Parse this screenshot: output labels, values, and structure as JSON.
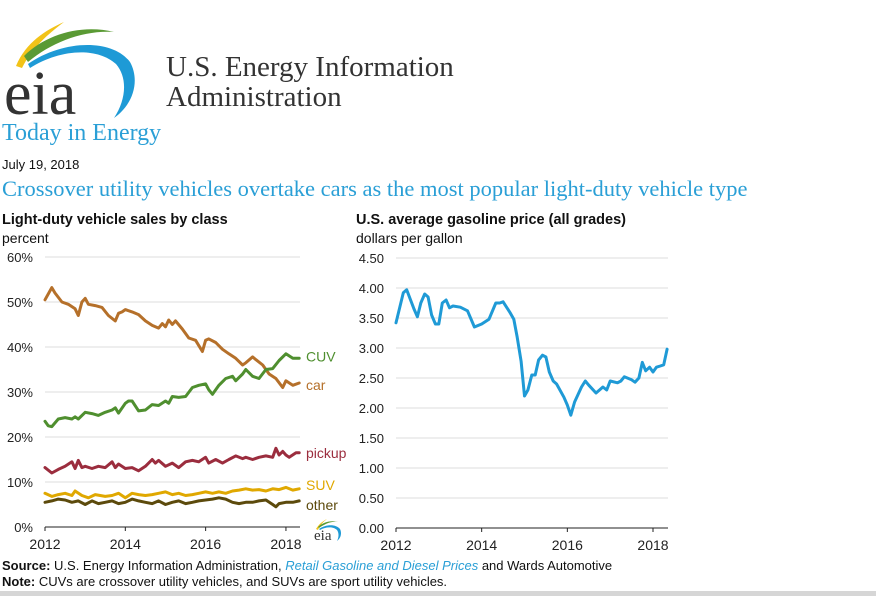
{
  "header": {
    "org_line1": "U.S. Energy Information",
    "org_line2": "Administration",
    "logo_text": "eia",
    "section": "Today in Energy",
    "date": "July 19, 2018",
    "headline": "Crossover utility vehicles overtake cars as the most popular light-duty vehicle type"
  },
  "footer": {
    "source_label": "Source:",
    "source_text": "U.S. Energy Information Administration,",
    "source_link": "Retail Gasoline and Diesel Prices",
    "source_tail": "and Wards Automotive",
    "note_label": "Note:",
    "note_text": "CUVs are crossover utility vehicles, and SUVs are sport utility vehicles."
  },
  "colors": {
    "car": "#b5702a",
    "CUV": "#4f8f2f",
    "pickup": "#9b2d3e",
    "SUV": "#e0a800",
    "other": "#5c4a0c",
    "gasoline": "#1f9ad6",
    "accent": "#2a9fd6"
  },
  "chart_data": [
    {
      "type": "line",
      "title": "Light-duty vehicle sales by class",
      "ylabel": "percent",
      "xlabel": "",
      "ylim": [
        0,
        60
      ],
      "xlim": [
        2012,
        2018.35
      ],
      "yticks": [
        "0%",
        "10%",
        "20%",
        "30%",
        "40%",
        "50%",
        "60%"
      ],
      "ytick_values": [
        0,
        10,
        20,
        30,
        40,
        50,
        60
      ],
      "xticks": [
        "2012",
        "2014",
        "2016",
        "2018"
      ],
      "xtick_values": [
        2012,
        2014,
        2016,
        2018
      ],
      "grid": true,
      "legend": "inline-right",
      "series": [
        {
          "name": "car",
          "label": "car",
          "x": [
            2012.0,
            2012.17,
            2012.25,
            2012.42,
            2012.58,
            2012.75,
            2012.83,
            2012.92,
            2013.0,
            2013.08,
            2013.25,
            2013.42,
            2013.58,
            2013.75,
            2013.83,
            2013.92,
            2014.0,
            2014.17,
            2014.33,
            2014.5,
            2014.67,
            2014.83,
            2014.92,
            2015.0,
            2015.08,
            2015.17,
            2015.25,
            2015.42,
            2015.58,
            2015.75,
            2015.92,
            2016.0,
            2016.08,
            2016.25,
            2016.42,
            2016.58,
            2016.75,
            2016.92,
            2017.0,
            2017.17,
            2017.25,
            2017.42,
            2017.58,
            2017.75,
            2017.92,
            2018.0,
            2018.17,
            2018.33
          ],
          "values": [
            50.5,
            53.2,
            52.0,
            50.0,
            49.5,
            48.5,
            47.0,
            50.0,
            50.8,
            49.5,
            49.2,
            48.8,
            47.0,
            45.8,
            47.5,
            47.8,
            48.3,
            47.8,
            47.2,
            45.8,
            44.8,
            44.2,
            45.2,
            44.5,
            46.0,
            45.0,
            45.8,
            44.0,
            42.0,
            41.5,
            39.0,
            41.5,
            41.8,
            41.0,
            39.5,
            38.5,
            37.5,
            36.0,
            36.5,
            37.8,
            37.2,
            36.0,
            34.0,
            33.0,
            31.0,
            32.5,
            31.5,
            32.0
          ]
        },
        {
          "name": "CUV",
          "label": "CUV",
          "x": [
            2012.0,
            2012.08,
            2012.17,
            2012.33,
            2012.5,
            2012.67,
            2012.75,
            2012.83,
            2013.0,
            2013.17,
            2013.33,
            2013.5,
            2013.67,
            2013.75,
            2013.83,
            2014.0,
            2014.08,
            2014.17,
            2014.33,
            2014.5,
            2014.67,
            2014.83,
            2015.0,
            2015.08,
            2015.17,
            2015.33,
            2015.5,
            2015.67,
            2015.83,
            2016.0,
            2016.08,
            2016.17,
            2016.33,
            2016.5,
            2016.67,
            2016.75,
            2016.92,
            2017.0,
            2017.17,
            2017.33,
            2017.5,
            2017.67,
            2017.83,
            2018.0,
            2018.17,
            2018.33
          ],
          "values": [
            23.5,
            22.5,
            22.3,
            24.0,
            24.3,
            24.0,
            24.5,
            24.0,
            25.5,
            25.2,
            24.8,
            25.5,
            26.0,
            26.5,
            25.3,
            27.5,
            28.0,
            28.0,
            25.8,
            26.0,
            27.2,
            27.0,
            28.0,
            27.5,
            29.0,
            28.8,
            29.0,
            31.0,
            31.5,
            31.8,
            30.5,
            29.5,
            31.5,
            33.0,
            33.5,
            32.5,
            34.0,
            35.0,
            33.5,
            33.0,
            35.0,
            35.2,
            37.0,
            38.5,
            37.5,
            37.5
          ]
        },
        {
          "name": "pickup",
          "label": "pickup",
          "x": [
            2012.0,
            2012.17,
            2012.33,
            2012.5,
            2012.67,
            2012.75,
            2012.83,
            2012.92,
            2013.0,
            2013.17,
            2013.33,
            2013.5,
            2013.67,
            2013.75,
            2013.83,
            2014.0,
            2014.17,
            2014.33,
            2014.5,
            2014.67,
            2014.75,
            2014.83,
            2015.0,
            2015.17,
            2015.33,
            2015.5,
            2015.67,
            2015.83,
            2016.0,
            2016.08,
            2016.25,
            2016.42,
            2016.58,
            2016.75,
            2016.92,
            2017.0,
            2017.17,
            2017.33,
            2017.5,
            2017.67,
            2017.75,
            2017.83,
            2017.92,
            2018.0,
            2018.08,
            2018.25,
            2018.33
          ],
          "values": [
            13.2,
            12.0,
            12.8,
            13.5,
            14.5,
            13.0,
            14.8,
            13.2,
            13.5,
            13.0,
            13.5,
            13.2,
            14.5,
            13.2,
            14.0,
            13.0,
            13.2,
            12.5,
            13.5,
            15.0,
            14.2,
            14.8,
            13.5,
            14.2,
            13.2,
            14.5,
            14.8,
            14.5,
            15.5,
            14.2,
            15.0,
            14.2,
            15.0,
            15.8,
            15.2,
            15.5,
            15.0,
            15.5,
            15.8,
            15.5,
            17.5,
            16.0,
            16.8,
            16.0,
            15.5,
            16.5,
            16.5
          ]
        },
        {
          "name": "SUV",
          "label": "SUV",
          "x": [
            2012.0,
            2012.17,
            2012.33,
            2012.5,
            2012.67,
            2012.75,
            2012.92,
            2013.08,
            2013.25,
            2013.5,
            2013.67,
            2013.83,
            2014.0,
            2014.17,
            2014.33,
            2014.5,
            2014.67,
            2014.83,
            2015.0,
            2015.17,
            2015.33,
            2015.5,
            2015.67,
            2015.83,
            2016.0,
            2016.17,
            2016.33,
            2016.5,
            2016.67,
            2016.83,
            2017.0,
            2017.17,
            2017.33,
            2017.5,
            2017.67,
            2017.83,
            2018.0,
            2018.17,
            2018.33
          ],
          "values": [
            7.5,
            6.8,
            7.2,
            7.5,
            7.0,
            8.0,
            7.0,
            6.5,
            7.2,
            6.8,
            7.0,
            7.5,
            6.5,
            7.5,
            7.2,
            7.0,
            7.2,
            7.5,
            7.8,
            7.2,
            7.5,
            7.0,
            7.2,
            7.5,
            7.8,
            7.5,
            7.8,
            7.5,
            8.0,
            8.2,
            8.5,
            8.2,
            8.3,
            8.0,
            8.5,
            8.3,
            8.8,
            8.2,
            8.5
          ]
        },
        {
          "name": "other",
          "label": "other",
          "x": [
            2012.0,
            2012.17,
            2012.33,
            2012.5,
            2012.67,
            2012.83,
            2013.0,
            2013.17,
            2013.33,
            2013.5,
            2013.67,
            2013.83,
            2014.0,
            2014.17,
            2014.33,
            2014.5,
            2014.67,
            2014.83,
            2015.0,
            2015.17,
            2015.33,
            2015.5,
            2015.67,
            2015.83,
            2016.0,
            2016.17,
            2016.33,
            2016.5,
            2016.67,
            2016.83,
            2017.0,
            2017.17,
            2017.33,
            2017.5,
            2017.67,
            2017.75,
            2017.83,
            2018.0,
            2018.17,
            2018.33
          ],
          "values": [
            5.5,
            5.8,
            6.2,
            6.0,
            5.5,
            5.8,
            5.0,
            5.8,
            5.2,
            5.5,
            5.8,
            5.2,
            5.5,
            6.2,
            5.8,
            5.5,
            5.2,
            5.8,
            5.0,
            5.5,
            5.8,
            5.2,
            5.5,
            5.8,
            6.0,
            6.2,
            6.5,
            6.2,
            5.5,
            5.2,
            5.5,
            5.5,
            5.8,
            6.0,
            5.0,
            4.5,
            5.2,
            5.5,
            5.5,
            5.8
          ]
        }
      ]
    },
    {
      "type": "line",
      "title": "U.S. average gasoline price (all grades)",
      "ylabel": "dollars per gallon",
      "xlabel": "",
      "ylim": [
        0,
        4.5
      ],
      "xlim": [
        2012,
        2018.35
      ],
      "yticks": [
        "0.00",
        "0.50",
        "1.00",
        "1.50",
        "2.00",
        "2.50",
        "3.00",
        "3.50",
        "4.00",
        "4.50"
      ],
      "ytick_values": [
        0,
        0.5,
        1.0,
        1.5,
        2.0,
        2.5,
        3.0,
        3.5,
        4.0,
        4.5
      ],
      "xticks": [
        "2012",
        "2014",
        "2016",
        "2018"
      ],
      "xtick_values": [
        2012,
        2014,
        2016,
        2018
      ],
      "grid": true,
      "series": [
        {
          "name": "gasoline price",
          "x": [
            2012.0,
            2012.17,
            2012.25,
            2012.42,
            2012.5,
            2012.58,
            2012.67,
            2012.75,
            2012.83,
            2012.92,
            2013.0,
            2013.08,
            2013.17,
            2013.25,
            2013.33,
            2013.5,
            2013.67,
            2013.83,
            2014.0,
            2014.17,
            2014.33,
            2014.42,
            2014.5,
            2014.67,
            2014.75,
            2014.83,
            2014.92,
            2015.0,
            2015.08,
            2015.17,
            2015.25,
            2015.33,
            2015.42,
            2015.5,
            2015.58,
            2015.67,
            2015.75,
            2015.92,
            2016.0,
            2016.08,
            2016.17,
            2016.33,
            2016.42,
            2016.5,
            2016.67,
            2016.75,
            2016.83,
            2016.92,
            2017.0,
            2017.17,
            2017.25,
            2017.33,
            2017.5,
            2017.58,
            2017.67,
            2017.75,
            2017.83,
            2017.92,
            2018.0,
            2018.08,
            2018.17,
            2018.25,
            2018.33
          ],
          "values": [
            3.42,
            3.92,
            3.97,
            3.65,
            3.52,
            3.75,
            3.9,
            3.85,
            3.55,
            3.4,
            3.4,
            3.75,
            3.8,
            3.67,
            3.7,
            3.68,
            3.62,
            3.35,
            3.4,
            3.48,
            3.75,
            3.75,
            3.77,
            3.58,
            3.48,
            3.18,
            2.78,
            2.2,
            2.3,
            2.55,
            2.55,
            2.8,
            2.88,
            2.85,
            2.6,
            2.45,
            2.4,
            2.18,
            2.05,
            1.88,
            2.1,
            2.35,
            2.45,
            2.38,
            2.25,
            2.3,
            2.35,
            2.3,
            2.45,
            2.42,
            2.45,
            2.52,
            2.47,
            2.43,
            2.5,
            2.76,
            2.62,
            2.68,
            2.6,
            2.68,
            2.7,
            2.72,
            2.98
          ]
        }
      ]
    }
  ]
}
